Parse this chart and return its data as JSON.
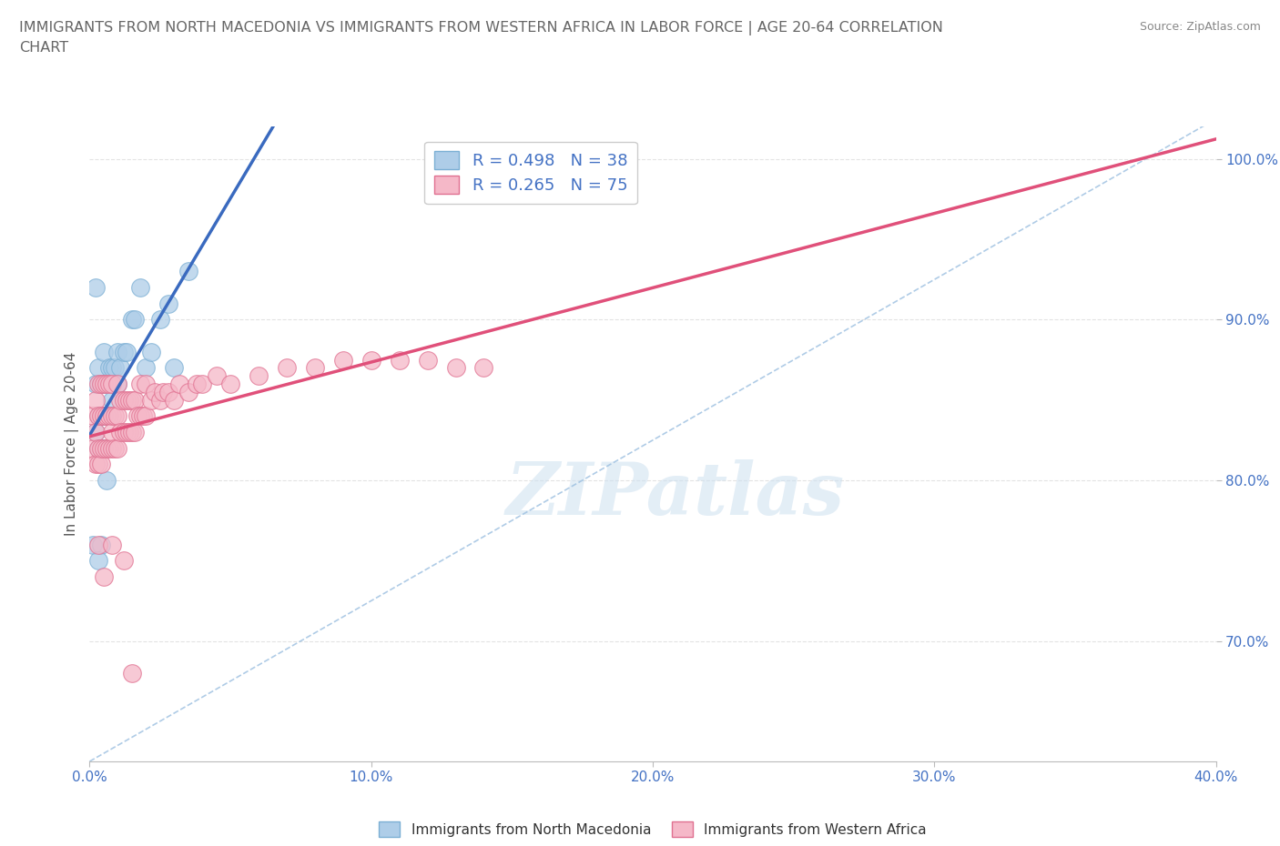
{
  "title": "IMMIGRANTS FROM NORTH MACEDONIA VS IMMIGRANTS FROM WESTERN AFRICA IN LABOR FORCE | AGE 20-64 CORRELATION\nCHART",
  "source_text": "Source: ZipAtlas.com",
  "ylabel": "In Labor Force | Age 20-64",
  "xlim": [
    0.0,
    0.4
  ],
  "ylim": [
    0.625,
    1.02
  ],
  "yticks": [
    0.7,
    0.8,
    0.9,
    1.0
  ],
  "xticks": [
    0.0,
    0.1,
    0.2,
    0.3,
    0.4
  ],
  "series": [
    {
      "name": "Immigrants from North Macedonia",
      "color": "#aecde8",
      "edge_color": "#7bafd4",
      "R": 0.498,
      "N": 38,
      "line_color": "#3a6abf",
      "x": [
        0.001,
        0.002,
        0.002,
        0.003,
        0.003,
        0.003,
        0.004,
        0.004,
        0.004,
        0.005,
        0.005,
        0.005,
        0.005,
        0.006,
        0.006,
        0.007,
        0.007,
        0.008,
        0.008,
        0.009,
        0.01,
        0.01,
        0.011,
        0.012,
        0.013,
        0.015,
        0.016,
        0.018,
        0.02,
        0.022,
        0.025,
        0.028,
        0.03,
        0.035,
        0.002,
        0.004,
        0.006,
        0.003
      ],
      "y": [
        0.76,
        0.83,
        0.86,
        0.82,
        0.84,
        0.87,
        0.82,
        0.84,
        0.86,
        0.82,
        0.84,
        0.86,
        0.88,
        0.84,
        0.86,
        0.84,
        0.87,
        0.85,
        0.87,
        0.87,
        0.86,
        0.88,
        0.87,
        0.88,
        0.88,
        0.9,
        0.9,
        0.92,
        0.87,
        0.88,
        0.9,
        0.91,
        0.87,
        0.93,
        0.92,
        0.76,
        0.8,
        0.75
      ]
    },
    {
      "name": "Immigrants from Western Africa",
      "color": "#f5b8c8",
      "edge_color": "#e07090",
      "R": 0.265,
      "N": 75,
      "line_color": "#e0507a",
      "x": [
        0.001,
        0.001,
        0.002,
        0.002,
        0.002,
        0.003,
        0.003,
        0.003,
        0.003,
        0.004,
        0.004,
        0.004,
        0.004,
        0.005,
        0.005,
        0.005,
        0.006,
        0.006,
        0.006,
        0.007,
        0.007,
        0.007,
        0.008,
        0.008,
        0.008,
        0.008,
        0.009,
        0.009,
        0.01,
        0.01,
        0.01,
        0.011,
        0.011,
        0.012,
        0.012,
        0.013,
        0.013,
        0.014,
        0.014,
        0.015,
        0.015,
        0.016,
        0.016,
        0.017,
        0.018,
        0.018,
        0.019,
        0.02,
        0.02,
        0.022,
        0.023,
        0.025,
        0.026,
        0.028,
        0.03,
        0.032,
        0.035,
        0.038,
        0.04,
        0.045,
        0.05,
        0.06,
        0.07,
        0.08,
        0.09,
        0.1,
        0.11,
        0.12,
        0.13,
        0.14,
        0.003,
        0.005,
        0.008,
        0.012,
        0.015
      ],
      "y": [
        0.82,
        0.84,
        0.81,
        0.83,
        0.85,
        0.81,
        0.82,
        0.84,
        0.86,
        0.81,
        0.82,
        0.84,
        0.86,
        0.82,
        0.84,
        0.86,
        0.82,
        0.84,
        0.86,
        0.82,
        0.84,
        0.86,
        0.82,
        0.83,
        0.84,
        0.86,
        0.82,
        0.84,
        0.82,
        0.84,
        0.86,
        0.83,
        0.85,
        0.83,
        0.85,
        0.83,
        0.85,
        0.83,
        0.85,
        0.83,
        0.85,
        0.83,
        0.85,
        0.84,
        0.84,
        0.86,
        0.84,
        0.84,
        0.86,
        0.85,
        0.855,
        0.85,
        0.855,
        0.855,
        0.85,
        0.86,
        0.855,
        0.86,
        0.86,
        0.865,
        0.86,
        0.865,
        0.87,
        0.87,
        0.875,
        0.875,
        0.875,
        0.875,
        0.87,
        0.87,
        0.76,
        0.74,
        0.76,
        0.75,
        0.68
      ]
    }
  ],
  "diag_line": {
    "x0": 0.0,
    "y0": 0.625,
    "x1": 0.4,
    "y1": 1.025
  },
  "watermark": "ZIPatlas",
  "background_color": "#ffffff",
  "grid_color": "#e0e0e0",
  "title_color": "#666666",
  "axis_label_color": "#555555",
  "tick_label_color": "#4472c4",
  "legend_R_N_color": "#4472c4",
  "source_color": "#888888"
}
